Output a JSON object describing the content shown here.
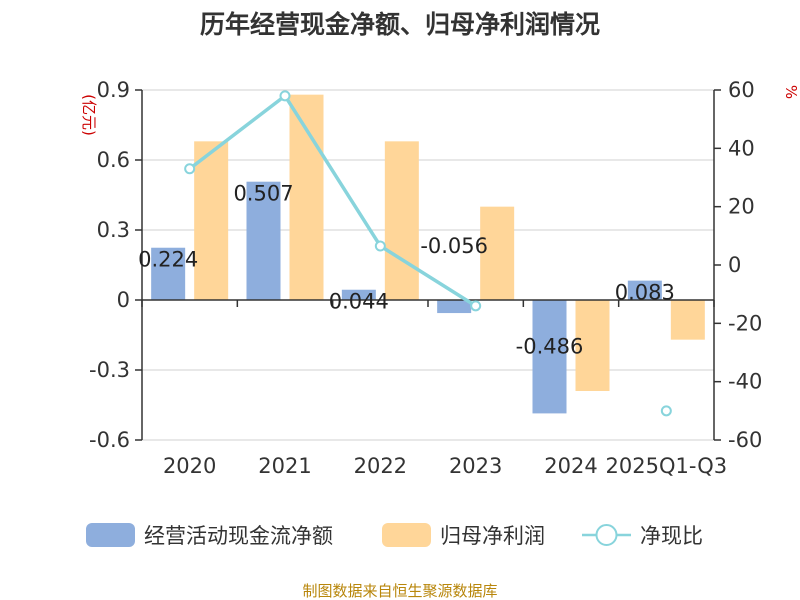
{
  "chart_data": {
    "type": "bar",
    "title": "历年经营现金净额、归母净利润情况",
    "categories": [
      "2020",
      "2021",
      "2022",
      "2023",
      "2024",
      "2025Q1-Q3"
    ],
    "series": [
      {
        "name": "经营活动现金流净额",
        "type": "bar",
        "axis": "left",
        "color": "#8eaedd",
        "values": [
          0.224,
          0.507,
          0.044,
          -0.056,
          -0.486,
          0.083
        ],
        "labels": [
          "0.224",
          "0.507",
          "0.044",
          "-0.056",
          "-0.486",
          "0.083"
        ]
      },
      {
        "name": "归母净利润",
        "type": "bar",
        "axis": "left",
        "color": "#ffd699",
        "values": [
          0.68,
          0.88,
          0.68,
          0.4,
          -0.39,
          -0.17
        ]
      },
      {
        "name": "净现比",
        "type": "line",
        "axis": "right",
        "color": "#88d4dc",
        "values": [
          33,
          58,
          6.5,
          -14,
          null,
          -50
        ]
      }
    ],
    "y_left": {
      "unit": "(亿元)",
      "ylim": [
        -0.6,
        0.9
      ],
      "ticks": [
        "-0.6",
        "-0.3",
        "0",
        "0.3",
        "0.6",
        "0.9"
      ]
    },
    "y_right": {
      "unit": "%",
      "ylim": [
        -60,
        60
      ],
      "ticks": [
        "-60",
        "-40",
        "-20",
        "0",
        "20",
        "40",
        "60"
      ]
    },
    "grid": true,
    "legend_position": "bottom",
    "source": "制图数据来自恒生聚源数据库"
  }
}
